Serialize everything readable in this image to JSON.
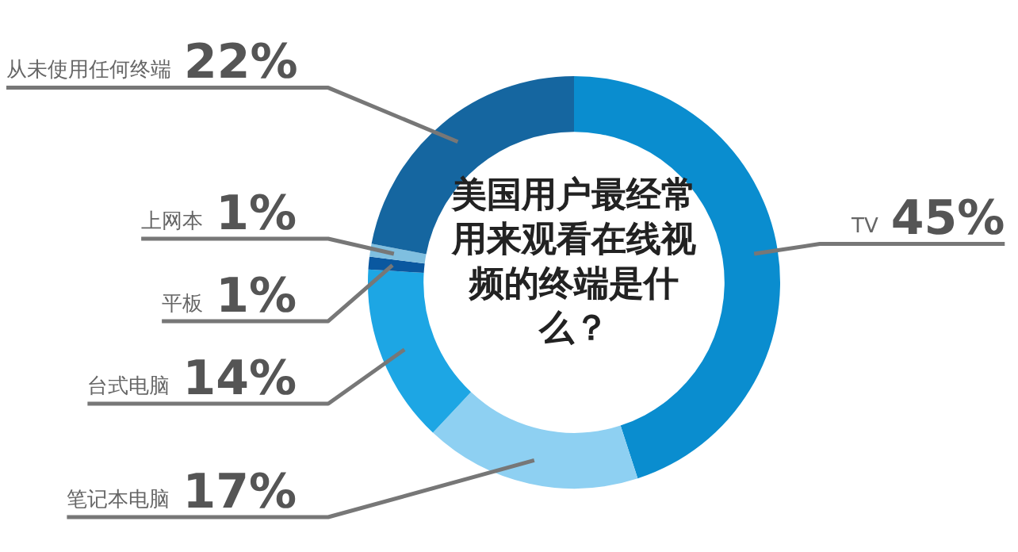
{
  "chart_data": {
    "type": "donut",
    "title": "美国用户最经常用来观看在线视频的终端是什么？",
    "categories": [
      "TV",
      "笔记本电脑",
      "台式电脑",
      "平板",
      "上网本",
      "从未使用任何终端"
    ],
    "values": [
      45,
      17,
      14,
      1,
      1,
      22
    ],
    "value_labels": [
      "45%",
      "17%",
      "14%",
      "1%",
      "1%",
      "22%"
    ],
    "colors": [
      "#0a8dcf",
      "#8ed0f2",
      "#1da6e4",
      "#0a58a0",
      "#7fbfe0",
      "#1566a0"
    ],
    "legend": false
  }
}
